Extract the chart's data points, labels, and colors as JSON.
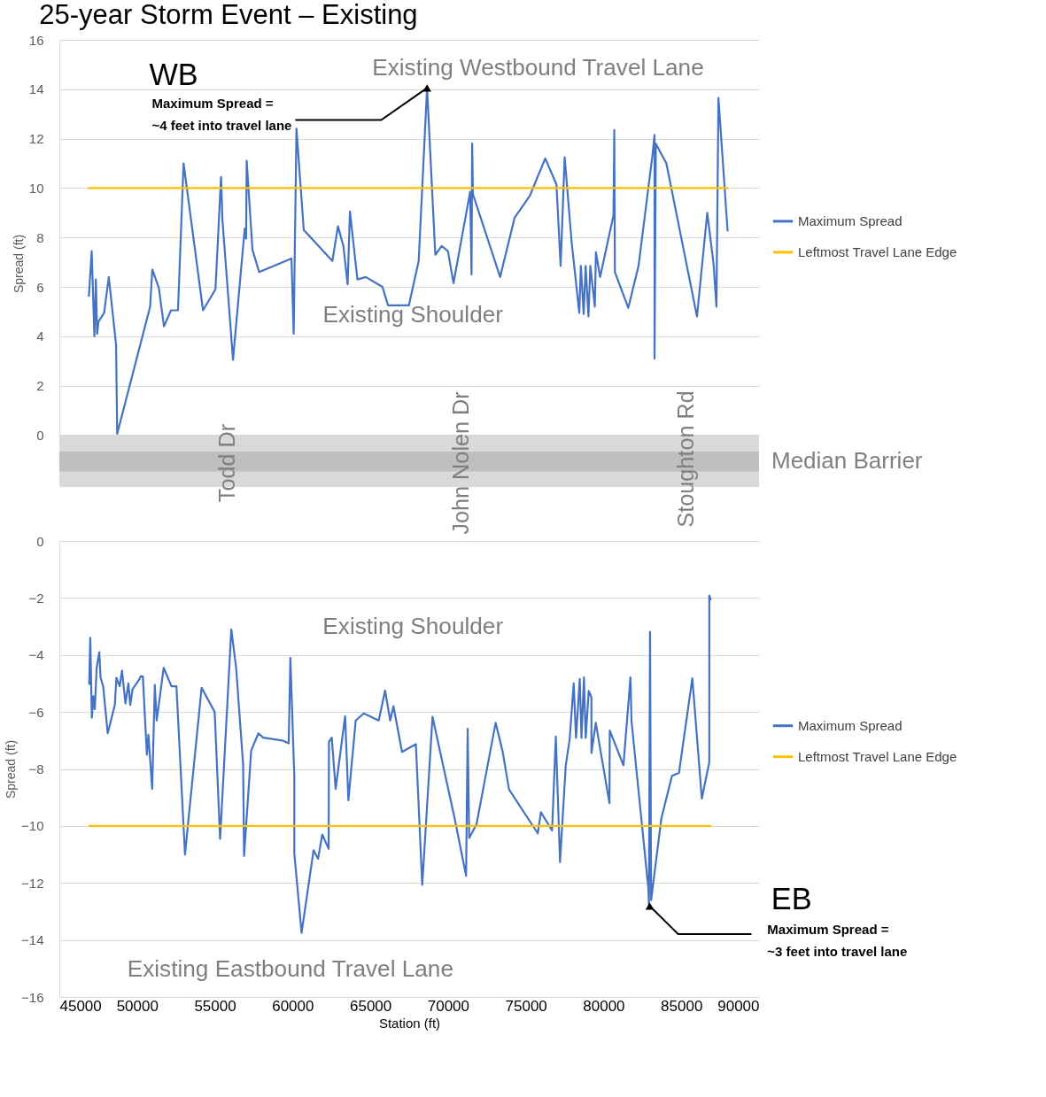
{
  "chart_data": [
    {
      "type": "line",
      "title": "25-year Storm Event – Existing",
      "ylabel": "Spread (ft)",
      "xlim": [
        45000,
        90000
      ],
      "ylim": [
        -2.1,
        16
      ],
      "yticks": [
        0,
        2,
        4,
        6,
        8,
        10,
        12,
        14,
        16
      ],
      "grid": "y",
      "legend": "right",
      "tick_labels": "y",
      "series": [
        {
          "name": "Maximum Spread",
          "color": "#4472c4",
          "x": [
            46900,
            47080,
            47255,
            47350,
            47430,
            47520,
            47880,
            48180,
            48650,
            48720,
            50840,
            50980,
            51400,
            51730,
            52180,
            52630,
            52990,
            54240,
            55040,
            55400,
            55490,
            56170,
            56920,
            57010,
            57050,
            57420,
            57850,
            59930,
            60070,
            60250,
            60720,
            62560,
            62920,
            63270,
            63540,
            63690,
            64170,
            64710,
            65780,
            66140,
            67480,
            68110,
            68650,
            69180,
            69590,
            69990,
            70350,
            71420,
            71510,
            71550,
            71600,
            73350,
            74280,
            75270,
            76250,
            76970,
            77240,
            77500,
            77950,
            78440,
            78540,
            78720,
            78850,
            79030,
            79150,
            79440,
            79510,
            79780,
            80640,
            80690,
            80730,
            81590,
            82250,
            83140,
            83280,
            83280,
            83360,
            84040,
            86010,
            86670,
            87080,
            87260,
            87390,
            87980
          ],
          "values": [
            5.6,
            7.45,
            4.0,
            6.3,
            4.1,
            4.6,
            4.95,
            6.4,
            3.65,
            0.05,
            5.2,
            6.7,
            5.95,
            4.4,
            5.05,
            5.05,
            11.0,
            5.05,
            5.9,
            10.45,
            8.7,
            3.05,
            8.35,
            7.95,
            11.1,
            7.5,
            6.6,
            7.15,
            4.1,
            12.4,
            8.3,
            7.05,
            8.45,
            7.65,
            6.1,
            9.05,
            6.3,
            6.4,
            6.0,
            5.25,
            5.25,
            7.05,
            14.05,
            7.3,
            7.65,
            7.45,
            6.15,
            9.85,
            6.5,
            11.8,
            9.75,
            6.4,
            8.8,
            9.7,
            11.2,
            10.15,
            6.85,
            11.25,
            7.8,
            4.95,
            6.85,
            4.9,
            6.85,
            4.8,
            6.85,
            5.2,
            7.4,
            6.4,
            8.9,
            12.35,
            6.6,
            5.15,
            6.85,
            11.3,
            12.15,
            3.1,
            11.8,
            11.0,
            4.8,
            9.0,
            6.9,
            5.2,
            13.65,
            8.25
          ]
        },
        {
          "name": "Leftmost Travel Lane Edge",
          "color": "#ffc000",
          "x": [
            46830,
            88010
          ],
          "values": [
            10,
            10
          ]
        }
      ],
      "bands": [
        {
          "axis": "y",
          "from": -2.1,
          "to": 0,
          "color": "#d9d9d9",
          "label": "Median Barrier"
        },
        {
          "axis": "y",
          "from": -1.47,
          "to": -0.67,
          "color": "#bfbfbf"
        }
      ],
      "annotations": [
        "WB",
        "Existing Westbound Travel Lane",
        "Existing Shoulder",
        {
          "text": "Maximum Spread =\n~4 feet into travel lane",
          "x": 68650,
          "y": 14.05
        },
        "Todd Dr",
        "John Nolen Dr",
        "Stoughton Rd"
      ]
    },
    {
      "type": "line",
      "ylabel": "Spread (ft)",
      "xlabel": "Station (ft)",
      "xlim": [
        45000,
        90000
      ],
      "xticks": [
        45000,
        50000,
        55000,
        60000,
        65000,
        70000,
        75000,
        80000,
        85000,
        90000
      ],
      "ylim": [
        -16,
        0
      ],
      "yticks": [
        -16,
        -14,
        -12,
        -10,
        -8,
        -6,
        -4,
        -2,
        0
      ],
      "grid": "y",
      "legend": "right",
      "series": [
        {
          "name": "Maximum Spread",
          "color": "#4472c4",
          "x": [
            46920,
            46990,
            47090,
            47190,
            47280,
            47400,
            47570,
            47650,
            47820,
            48110,
            48570,
            48670,
            48880,
            49030,
            49250,
            49440,
            49560,
            49710,
            50150,
            50230,
            50370,
            50630,
            50730,
            50970,
            51140,
            51260,
            51710,
            52210,
            52530,
            53080,
            54150,
            54990,
            55340,
            56060,
            56370,
            56820,
            56880,
            57340,
            57800,
            58110,
            59340,
            59750,
            59860,
            60110,
            60110,
            60580,
            61350,
            61640,
            61910,
            62320,
            62340,
            62520,
            62770,
            63380,
            63590,
            64060,
            64580,
            65540,
            65950,
            66280,
            66490,
            67040,
            67930,
            68340,
            69000,
            70440,
            71160,
            71260,
            71360,
            71830,
            73060,
            73510,
            73920,
            75770,
            75970,
            76690,
            76930,
            77200,
            77570,
            77820,
            78080,
            78230,
            78470,
            78580,
            78740,
            78850,
            79050,
            79220,
            79220,
            79500,
            80380,
            80400,
            81280,
            81730,
            81800,
            82880,
            82920,
            82990,
            83060,
            83720,
            84400,
            84850,
            85710,
            86320,
            86800,
            86800,
            86900
          ],
          "values": [
            -5.05,
            -3.4,
            -6.2,
            -5.45,
            -5.9,
            -4.45,
            -3.9,
            -4.8,
            -5.1,
            -6.75,
            -5.75,
            -4.8,
            -5.1,
            -4.55,
            -5.7,
            -5.0,
            -5.75,
            -5.2,
            -4.85,
            -4.75,
            -4.75,
            -7.5,
            -6.8,
            -8.7,
            -5.05,
            -6.3,
            -4.45,
            -5.1,
            -5.1,
            -11.0,
            -5.15,
            -6.0,
            -10.45,
            -3.1,
            -4.45,
            -7.85,
            -11.05,
            -7.35,
            -6.75,
            -6.9,
            -7.0,
            -7.1,
            -4.1,
            -8.25,
            -10.95,
            -13.75,
            -10.85,
            -11.15,
            -10.3,
            -10.8,
            -7.05,
            -6.9,
            -8.7,
            -6.15,
            -9.1,
            -6.3,
            -6.05,
            -6.3,
            -5.25,
            -6.3,
            -5.8,
            -7.4,
            -7.13,
            -12.07,
            -6.17,
            -9.78,
            -11.75,
            -6.6,
            -10.42,
            -9.94,
            -6.38,
            -7.39,
            -8.72,
            -10.26,
            -9.52,
            -10.16,
            -6.86,
            -11.27,
            -7.87,
            -6.96,
            -5.0,
            -6.91,
            -4.84,
            -6.91,
            -4.79,
            -6.91,
            -5.26,
            -5.48,
            -7.44,
            -6.38,
            -9.2,
            -6.65,
            -7.87,
            -4.79,
            -6.33,
            -12.18,
            -12.81,
            -3.19,
            -12.6,
            -9.73,
            -8.24,
            -8.14,
            -4.82,
            -9.04,
            -7.76,
            -1.91,
            -2.08
          ]
        },
        {
          "name": "Leftmost Travel Lane Edge",
          "color": "#ffc000",
          "x": [
            46880,
            86940
          ],
          "values": [
            -10,
            -10
          ]
        }
      ],
      "annotations": [
        "Existing Shoulder",
        "Existing Eastbound Travel Lane",
        "EB",
        {
          "text": "Maximum Spread =\n~3 feet into travel lane",
          "x": 82970,
          "y": -12.81
        }
      ]
    }
  ]
}
